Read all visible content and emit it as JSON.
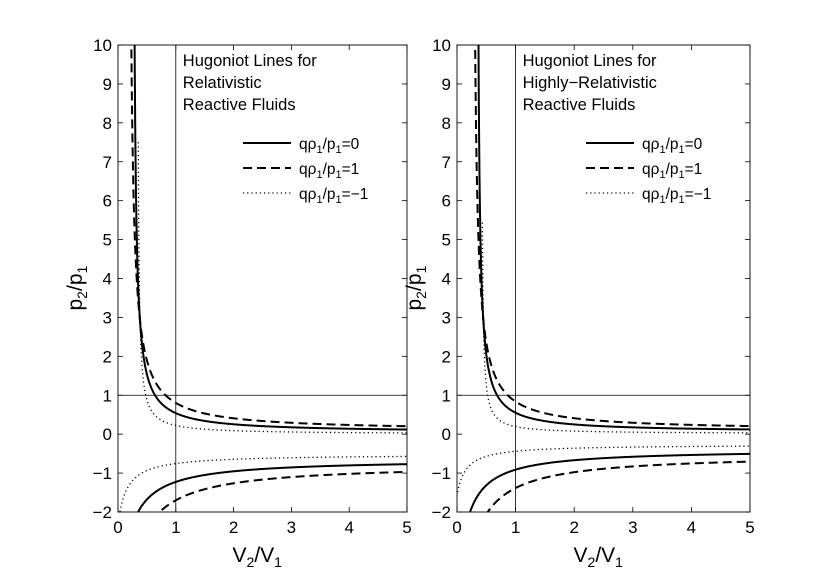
{
  "chart_data": [
    {
      "type": "line",
      "title": [
        "Hugoniot Lines for",
        "Relativistic",
        "Reactive Fluids"
      ],
      "xlabel": {
        "main": "V",
        "sub1": "2",
        "slash": "/V",
        "sub2": "1"
      },
      "ylabel": {
        "main": "p",
        "sub1": "2",
        "slash": "/p",
        "sub2": "1"
      },
      "xlim": [
        0,
        5
      ],
      "ylim": [
        -2,
        10
      ],
      "xticks": [
        0,
        1,
        2,
        3,
        4,
        5
      ],
      "xtick_labels": [
        "0",
        "1",
        "2",
        "3",
        "4",
        "5"
      ],
      "yticks": [
        -2,
        -1,
        0,
        1,
        2,
        3,
        4,
        5,
        6,
        7,
        8,
        9,
        10
      ],
      "ytick_labels": [
        "−2",
        "−1",
        "0",
        "1",
        "2",
        "3",
        "4",
        "5",
        "6",
        "7",
        "8",
        "9",
        "10"
      ],
      "reference_lines": {
        "x": 1,
        "y": 1
      },
      "legend_position": "top-right",
      "model": {
        "asymptote": 0.25,
        "constant": 0.75
      },
      "series": [
        {
          "name": "qρ₁/p₁=0",
          "label": {
            "a": "qρ",
            "b": "1",
            "c": "/p",
            "d": "1",
            "e": "=0"
          },
          "q": 0,
          "style": "solid"
        },
        {
          "name": "qρ₁/p₁=1",
          "label": {
            "a": "qρ",
            "b": "1",
            "c": "/p",
            "d": "1",
            "e": "=1"
          },
          "q": 1,
          "style": "dashed"
        },
        {
          "name": "qρ₁/p₁=−1",
          "label": {
            "a": "qρ",
            "b": "1",
            "c": "/p",
            "d": "1",
            "e": "=−1"
          },
          "q": -1,
          "style": "dotted"
        }
      ]
    },
    {
      "type": "line",
      "title": [
        "Hugoniot Lines for",
        "Highly−Relativistic",
        "Reactive Fluids"
      ],
      "xlabel": {
        "main": "V",
        "sub1": "2",
        "slash": "/V",
        "sub2": "1"
      },
      "ylabel": {
        "main": "p",
        "sub1": "2",
        "slash": "/p",
        "sub2": "1"
      },
      "xlim": [
        0,
        5
      ],
      "ylim": [
        -2,
        10
      ],
      "xticks": [
        0,
        1,
        2,
        3,
        4,
        5
      ],
      "xtick_labels": [
        "0",
        "1",
        "2",
        "3",
        "4",
        "5"
      ],
      "yticks": [
        -2,
        -1,
        0,
        1,
        2,
        3,
        4,
        5,
        6,
        7,
        8,
        9,
        10
      ],
      "ytick_labels": [
        "−2",
        "−1",
        "0",
        "1",
        "2",
        "3",
        "4",
        "5",
        "6",
        "7",
        "8",
        "9",
        "10"
      ],
      "reference_lines": {
        "x": 1,
        "y": 1
      },
      "legend_position": "top-right",
      "model": {
        "asymptote": 0.333,
        "constant": 0.667
      },
      "series": [
        {
          "name": "qρ₁/p₁=0",
          "label": {
            "a": "qρ",
            "b": "1",
            "c": "/p",
            "d": "1",
            "e": "=0"
          },
          "q": 0,
          "style": "solid"
        },
        {
          "name": "qρ₁/p₁=1",
          "label": {
            "a": "qρ",
            "b": "1",
            "c": "/p",
            "d": "1",
            "e": "=1"
          },
          "q": 1,
          "style": "dashed"
        },
        {
          "name": "qρ₁/p₁=−1",
          "label": {
            "a": "qρ",
            "b": "1",
            "c": "/p",
            "d": "1",
            "e": "=−1"
          },
          "q": -1,
          "style": "dotted"
        }
      ]
    }
  ]
}
